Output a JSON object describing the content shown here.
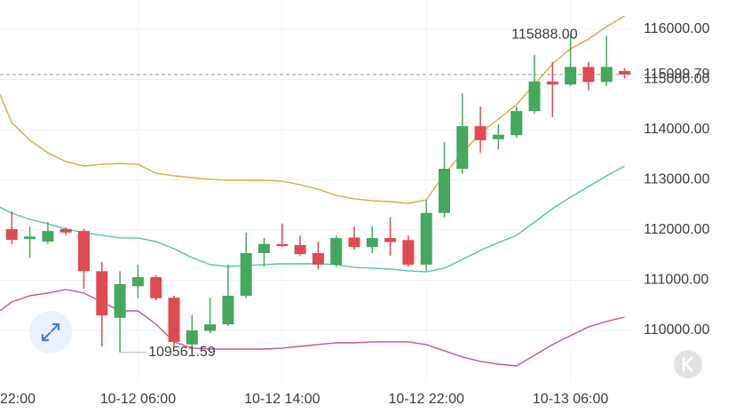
{
  "chart_data": {
    "type": "candlestick",
    "categories": [
      "22:00",
      null,
      null,
      null,
      null,
      null,
      null,
      null,
      "10-12 06:00",
      null,
      null,
      null,
      null,
      null,
      null,
      null,
      "10-12 14:00",
      null,
      null,
      null,
      null,
      null,
      null,
      null,
      "10-12 22:00",
      null,
      null,
      null,
      null,
      null,
      null,
      null,
      "10-13 06:00",
      null,
      null,
      null
    ],
    "open": [
      null,
      112018,
      111820,
      111770,
      112020,
      111980,
      111180,
      110250,
      110880,
      111060,
      110650,
      109720,
      109990,
      110120,
      110690,
      111540,
      111720,
      111700,
      111540,
      111310,
      111850,
      111660,
      111840,
      111800,
      111310,
      112340,
      113220,
      114070,
      113810,
      113890,
      114370,
      114960,
      114900,
      115250,
      114950,
      115170
    ],
    "high": [
      null,
      112372,
      112070,
      112160,
      112050,
      112020,
      111360,
      111180,
      111310,
      111100,
      110690,
      110300,
      110650,
      111310,
      111950,
      111840,
      112130,
      111890,
      111770,
      111890,
      112070,
      112070,
      112250,
      111890,
      112600,
      113750,
      114720,
      114460,
      114110,
      114460,
      115490,
      115350,
      115888,
      115350,
      115870,
      115230
    ],
    "low": [
      null,
      111717,
      111450,
      111720,
      111900,
      110830,
      109680,
      109561.59,
      110650,
      110600,
      109680,
      109600,
      109950,
      110090,
      110650,
      111270,
      111660,
      111490,
      111220,
      111270,
      111610,
      111540,
      111490,
      111270,
      111190,
      112250,
      113130,
      113540,
      113610,
      113840,
      114320,
      114250,
      114870,
      114780,
      114870,
      115020
    ],
    "close": [
      null,
      111805,
      111870,
      111980,
      111950,
      111180,
      110300,
      110920,
      111060,
      110640,
      109770,
      110000,
      110120,
      110690,
      111540,
      111720,
      111680,
      111520,
      111310,
      111840,
      111660,
      111840,
      111760,
      111310,
      112340,
      113220,
      114070,
      113790,
      113900,
      114370,
      114960,
      114900,
      115250,
      114950,
      115250,
      115099.79
    ],
    "up_color": "#45a85c",
    "down_color": "#de4b53",
    "bands": [
      {
        "color": "#e6a93a",
        "values": [
          114991,
          114142,
          113788,
          113540,
          113363,
          113274,
          113310,
          113327,
          113310,
          113133,
          113080,
          113044,
          113009,
          112991,
          112991,
          112991,
          112973,
          112903,
          112814,
          112690,
          112620,
          112584,
          112566,
          112531,
          112602,
          113115,
          113540,
          113929,
          114212,
          114495,
          114903,
          115310,
          115611,
          115805,
          116053,
          116266
        ]
      },
      {
        "color": "#4fc9a6",
        "values": [
          112513,
          112336,
          112212,
          112124,
          112018,
          111947,
          111894,
          111841,
          111841,
          111770,
          111628,
          111451,
          111310,
          111274,
          111292,
          111310,
          111327,
          111327,
          111327,
          111310,
          111256,
          111239,
          111221,
          111186,
          111168,
          111239,
          111416,
          111593,
          111752,
          111894,
          112159,
          112425,
          112655,
          112867,
          113080,
          113274
        ]
      },
      {
        "color": "#c94fa8",
        "values": [
          110301,
          110566,
          110690,
          110743,
          110814,
          110743,
          110566,
          110389,
          110389,
          110124,
          109770,
          109646,
          109628,
          109628,
          109628,
          109628,
          109646,
          109681,
          109717,
          109752,
          109752,
          109770,
          109770,
          109770,
          109717,
          109593,
          109469,
          109381,
          109327,
          109292,
          109504,
          109717,
          109894,
          110071,
          110177,
          110265
        ]
      }
    ],
    "ylim": [
      108973,
      116584
    ],
    "yticks": [
      {
        "value": 110000,
        "label": "110000.00"
      },
      {
        "value": 111000,
        "label": "111000.00"
      },
      {
        "value": 112000,
        "label": "112000.00"
      },
      {
        "value": 113000,
        "label": "113000.00"
      },
      {
        "value": 114000,
        "label": "114000.00"
      },
      {
        "value": 115000,
        "label": "115000.00"
      },
      {
        "value": 116000,
        "label": "116000.00"
      }
    ],
    "grid": true,
    "annotations": [
      {
        "value": 115888,
        "label": "115888.00"
      },
      {
        "value": 109561.59,
        "label": "109561.59"
      }
    ],
    "last_price": {
      "value": 115099.79,
      "label": "115099.79",
      "color": "#de4b53"
    }
  }
}
